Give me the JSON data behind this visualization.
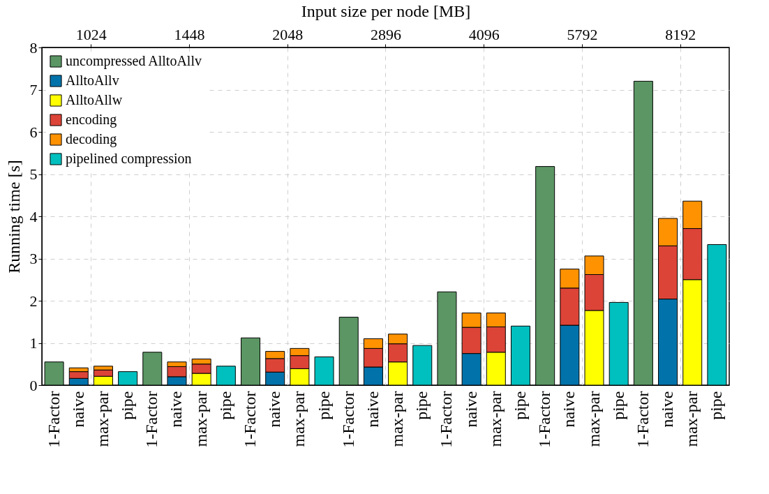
{
  "chart_data": {
    "type": "bar",
    "stacked": true,
    "ylabel": "Running time [s]",
    "x2label": "Input size per node [MB]",
    "categories": [
      "1-Factor",
      "naive",
      "max-par",
      "pipe",
      "1-Factor",
      "naive",
      "max-par",
      "pipe",
      "1-Factor",
      "naive",
      "max-par",
      "pipe",
      "1-Factor",
      "naive",
      "max-par",
      "pipe",
      "1-Factor",
      "naive",
      "max-par",
      "pipe",
      "1-Factor",
      "naive",
      "max-par",
      "pipe",
      "1-Factor",
      "naive",
      "max-par",
      "pipe"
    ],
    "series": [
      {
        "name": "uncompressed AlltoAllv",
        "color": "#5b9664",
        "values": [
          0.55,
          null,
          null,
          null,
          0.78,
          null,
          null,
          null,
          1.12,
          null,
          null,
          null,
          1.61,
          null,
          null,
          null,
          2.21,
          null,
          null,
          null,
          5.18,
          null,
          null,
          null,
          7.2,
          null,
          null,
          null
        ]
      },
      {
        "name": "AlltoAllv",
        "color": "#0173aa",
        "values": [
          null,
          0.16,
          null,
          null,
          null,
          0.2,
          null,
          null,
          null,
          0.31,
          null,
          null,
          null,
          0.43,
          null,
          null,
          null,
          0.75,
          null,
          null,
          null,
          1.42,
          null,
          null,
          null,
          2.04,
          null,
          null
        ]
      },
      {
        "name": "AlltoAllw",
        "color": "#ffff00",
        "values": [
          null,
          null,
          0.21,
          null,
          null,
          null,
          0.28,
          null,
          null,
          null,
          0.39,
          null,
          null,
          null,
          0.55,
          null,
          null,
          null,
          0.78,
          null,
          null,
          null,
          1.77,
          null,
          null,
          null,
          2.5,
          null
        ]
      },
      {
        "name": "encoding",
        "color": "#dc4437",
        "values": [
          null,
          0.16,
          0.15,
          null,
          null,
          0.24,
          0.22,
          null,
          null,
          0.32,
          0.31,
          null,
          null,
          0.44,
          0.43,
          null,
          null,
          0.62,
          0.6,
          null,
          null,
          0.88,
          0.85,
          null,
          null,
          1.26,
          1.21,
          null
        ]
      },
      {
        "name": "decoding",
        "color": "#ff9200",
        "values": [
          null,
          0.09,
          0.09,
          null,
          null,
          0.11,
          0.12,
          null,
          null,
          0.17,
          0.17,
          null,
          null,
          0.23,
          0.23,
          null,
          null,
          0.34,
          0.33,
          null,
          null,
          0.45,
          0.44,
          null,
          null,
          0.65,
          0.65,
          null
        ]
      },
      {
        "name": "pipelined compression",
        "color": "#00bfbf",
        "values": [
          null,
          null,
          null,
          0.32,
          null,
          null,
          null,
          0.45,
          null,
          null,
          null,
          0.67,
          null,
          null,
          null,
          0.94,
          null,
          null,
          null,
          1.4,
          null,
          null,
          null,
          1.96,
          null,
          null,
          null,
          3.33
        ]
      }
    ],
    "ylim": [
      0,
      8
    ],
    "yticks": [
      0,
      1,
      2,
      3,
      4,
      5,
      6,
      7,
      8
    ],
    "x2lim": [
      861.1,
      9741.8
    ],
    "x2ticks": [
      1024,
      1448,
      2048,
      2896,
      4096,
      5792,
      8192
    ],
    "log": "x2",
    "grid": true,
    "legend": "top left"
  }
}
